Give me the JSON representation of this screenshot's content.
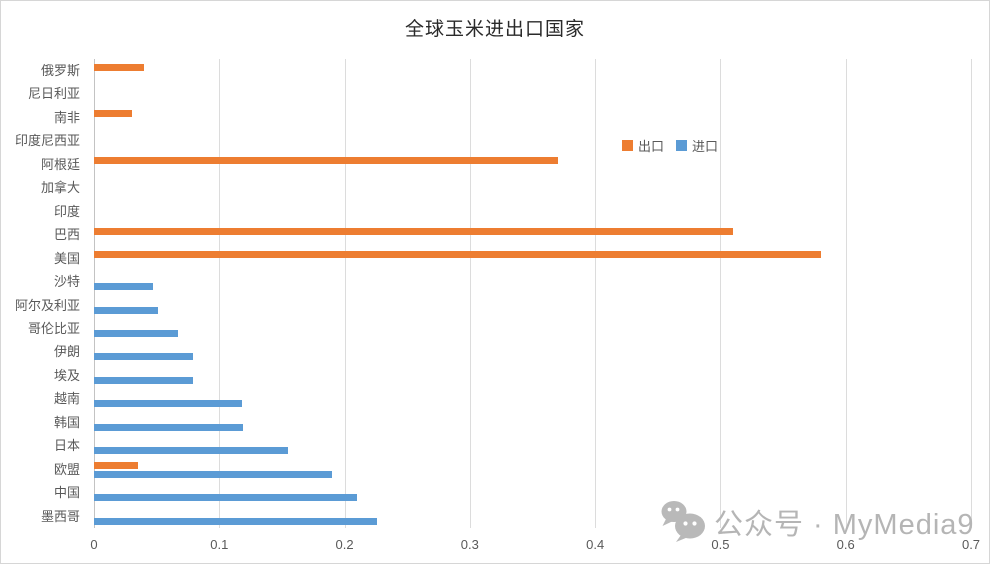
{
  "title": "全球玉米进出口国家",
  "legend": {
    "export_label": "出口",
    "import_label": "进口"
  },
  "watermark": {
    "icon": "wechat-icon",
    "text": "公众号 · MyMedia9"
  },
  "colors": {
    "export": "#ED7D31",
    "import": "#5B9BD5",
    "gridline": "#dcdcdc",
    "axis_line": "#c3c3c3",
    "label_text": "#595959",
    "title_text": "#2a2a2a",
    "watermark_text": "#b5b5b5"
  },
  "chart_data": {
    "type": "bar",
    "orientation": "horizontal",
    "title": "全球玉米进出口国家",
    "xlabel": "",
    "ylabel": "",
    "xlim": [
      0,
      0.7
    ],
    "xticks": [
      "0",
      "0.1",
      "0.2",
      "0.3",
      "0.4",
      "0.5",
      "0.6",
      "0.7"
    ],
    "grid": "vertical",
    "legend_position": "right-upper-middle",
    "categories": [
      "俄罗斯",
      "尼日利亚",
      "南非",
      "印度尼西亚",
      "阿根廷",
      "加拿大",
      "印度",
      "巴西",
      "美国",
      "沙特",
      "阿尔及利亚",
      "哥伦比亚",
      "伊朗",
      "埃及",
      "越南",
      "韩国",
      "日本",
      "欧盟",
      "中国",
      "墨西哥"
    ],
    "series": [
      {
        "name": "出口",
        "color": "#ED7D31",
        "values": [
          0.04,
          0,
          0.03,
          0,
          0.37,
          0,
          0,
          0.51,
          0.58,
          0,
          0,
          0,
          0,
          0,
          0,
          0,
          0,
          0.035,
          0,
          0
        ]
      },
      {
        "name": "进口",
        "color": "#5B9BD5",
        "values": [
          0,
          0,
          0,
          0,
          0,
          0,
          0,
          0,
          0,
          0.047,
          0.051,
          0.067,
          0.079,
          0.079,
          0.118,
          0.119,
          0.155,
          0.19,
          0.21,
          0.226
        ]
      }
    ]
  }
}
